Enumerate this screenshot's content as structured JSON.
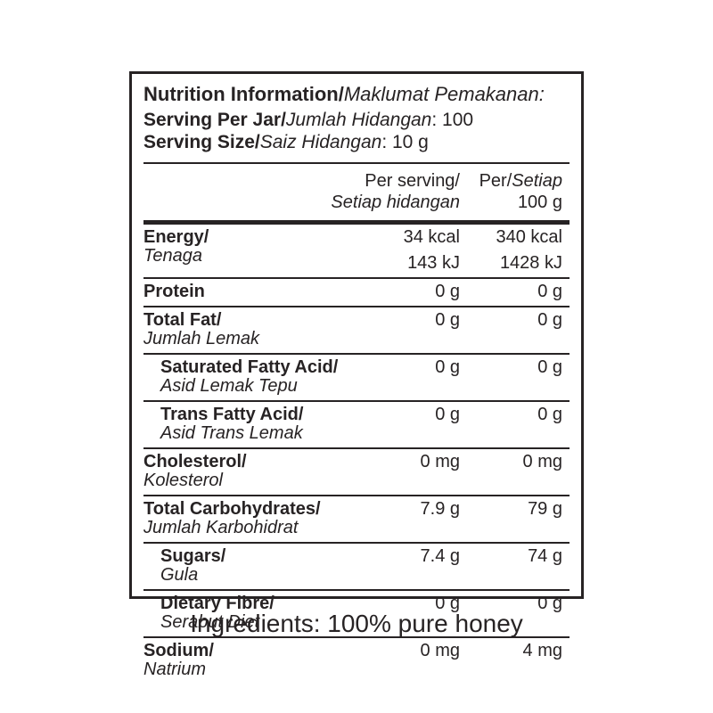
{
  "page": {
    "background_color": "#ffffff",
    "text_color": "#272324",
    "border_color": "#272324"
  },
  "label_box": {
    "title": {
      "en": "Nutrition Information/",
      "ms": "Maklumat Pemakanan:"
    },
    "serving_per_jar": {
      "en": "Serving Per Jar/",
      "ms": "Jumlah Hidangan",
      "value": ": 100"
    },
    "serving_size": {
      "en": "Serving Size/",
      "ms": "Saiz Hidangan",
      "value": ": 10 g"
    },
    "column_headers": {
      "per_serving": {
        "en": "Per serving/",
        "ms": "Setiap hidangan"
      },
      "per_100g": {
        "en": "Per/",
        "ms": "Setiap",
        "amount": "100 g"
      }
    },
    "rows": [
      {
        "name": "energy",
        "en": "Energy/",
        "ms": "Tenaga",
        "wrap": false,
        "indent": false,
        "per_serving": [
          "34 kcal",
          "143 kJ"
        ],
        "per_100g": [
          "340 kcal",
          "1428 kJ"
        ]
      },
      {
        "name": "protein",
        "en": "Protein",
        "ms": "",
        "wrap": false,
        "indent": false,
        "per_serving": [
          "0 g"
        ],
        "per_100g": [
          "0 g"
        ]
      },
      {
        "name": "total-fat",
        "en": "Total Fat/",
        "ms": "Jumlah Lemak",
        "wrap": false,
        "indent": false,
        "per_serving": [
          "0 g"
        ],
        "per_100g": [
          "0 g"
        ]
      },
      {
        "name": "saturated-fatty-acid",
        "en": "Saturated Fatty Acid/",
        "ms": "Asid Lemak Tepu",
        "wrap": true,
        "indent": true,
        "per_serving": [
          "0 g"
        ],
        "per_100g": [
          "0 g"
        ]
      },
      {
        "name": "trans-fatty-acid",
        "en": "Trans Fatty Acid/",
        "ms": "Asid Trans Lemak",
        "wrap": true,
        "indent": true,
        "per_serving": [
          "0 g"
        ],
        "per_100g": [
          "0 g"
        ]
      },
      {
        "name": "cholesterol",
        "en": "Cholesterol/",
        "ms": "Kolesterol",
        "wrap": false,
        "indent": false,
        "per_serving": [
          "0 mg"
        ],
        "per_100g": [
          "0 mg"
        ]
      },
      {
        "name": "total-carbohydrates",
        "en": "Total Carbohydrates/",
        "ms": "Jumlah Karbohidrat",
        "wrap": true,
        "indent": false,
        "per_serving": [
          "7.9 g"
        ],
        "per_100g": [
          "79 g"
        ]
      },
      {
        "name": "sugars",
        "en": "Sugars/",
        "ms": "Gula",
        "wrap": false,
        "indent": true,
        "per_serving": [
          "7.4 g"
        ],
        "per_100g": [
          "74 g"
        ]
      },
      {
        "name": "dietary-fibre",
        "en": "Dietary Fibre/",
        "ms": "Serabut Diet",
        "wrap": false,
        "indent": true,
        "per_serving": [
          "0 g"
        ],
        "per_100g": [
          "0 g"
        ]
      },
      {
        "name": "sodium",
        "en": "Sodium/",
        "ms": "Natrium",
        "wrap": false,
        "indent": false,
        "per_serving": [
          "0 mg"
        ],
        "per_100g": [
          "4 mg"
        ]
      }
    ]
  },
  "footer": {
    "ingredients": "Ingredients: 100% pure honey"
  }
}
